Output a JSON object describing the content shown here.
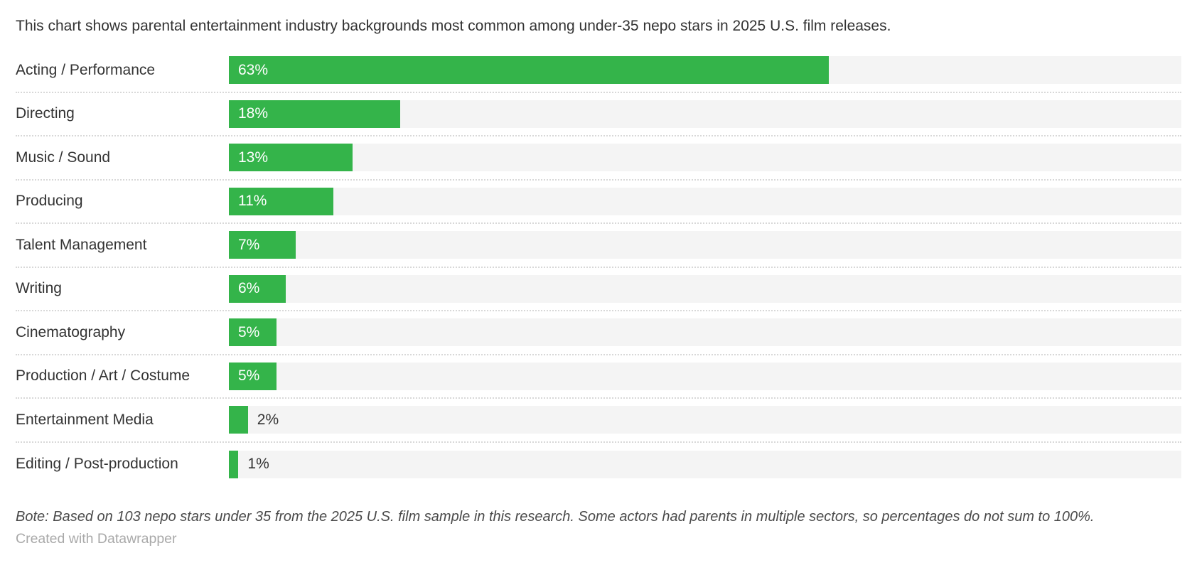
{
  "title": "This chart shows parental entertainment industry backgrounds most common among under-35 nepo stars in 2025 U.S. film releases.",
  "chart_data": {
    "type": "bar",
    "orientation": "horizontal",
    "categories": [
      "Acting / Performance",
      "Directing",
      "Music / Sound",
      "Producing",
      "Talent Management",
      "Writing",
      "Cinematography",
      "Production / Art / Costume",
      "Entertainment Media",
      "Editing / Post-production"
    ],
    "values": [
      63,
      18,
      13,
      11,
      7,
      6,
      5,
      5,
      2,
      1
    ],
    "value_labels": [
      "63%",
      "18%",
      "13%",
      "11%",
      "7%",
      "6%",
      "5%",
      "5%",
      "2%",
      "1%"
    ],
    "value_suffix": "%",
    "xlim": [
      0,
      100
    ],
    "grid": false,
    "legend": false,
    "inside_label_min_value": 5,
    "colors": {
      "bar": "#34b44a",
      "track": "#f4f4f4",
      "inside_label": "#ffffff",
      "outside_label": "#333333",
      "separator": "#d8d8d8"
    }
  },
  "note": "Bote: Based on 103 nepo stars under 35 from the 2025 U.S. film sample in this research. Some actors had parents in multiple sectors, so percentages do not sum to 100%.",
  "footer": "Created with Datawrapper"
}
